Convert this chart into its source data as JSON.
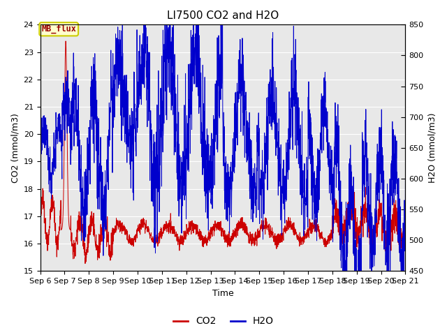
{
  "title": "LI7500 CO2 and H2O",
  "xlabel": "Time",
  "ylabel_left": "CO2 (mmol/m3)",
  "ylabel_right": "H2O (mmol/m3)",
  "xlim_days": [
    6,
    21
  ],
  "ylim_co2": [
    15.0,
    24.0
  ],
  "ylim_h2o": [
    450,
    850
  ],
  "xtick_labels": [
    "Sep 6",
    "Sep 7",
    "Sep 8",
    "Sep 9",
    "Sep 10",
    "Sep 11",
    "Sep 12",
    "Sep 13",
    "Sep 14",
    "Sep 15",
    "Sep 16",
    "Sep 17",
    "Sep 18",
    "Sep 19",
    "Sep 20",
    "Sep 21"
  ],
  "co2_color": "#cc0000",
  "h2o_color": "#0000cc",
  "background_color": "#ffffff",
  "plot_bg_color": "#e8e8e8",
  "annotation_text": "MB_flux",
  "annotation_bg": "#ffffcc",
  "annotation_border": "#cccc00",
  "legend_co2": "CO2",
  "legend_h2o": "H2O",
  "title_fontsize": 11,
  "axis_fontsize": 9,
  "tick_fontsize": 8,
  "co2_yticks": [
    15.0,
    16.0,
    17.0,
    18.0,
    19.0,
    20.0,
    21.0,
    22.0,
    23.0,
    24.0
  ],
  "h2o_yticks": [
    450,
    500,
    550,
    600,
    650,
    700,
    750,
    800,
    850
  ]
}
